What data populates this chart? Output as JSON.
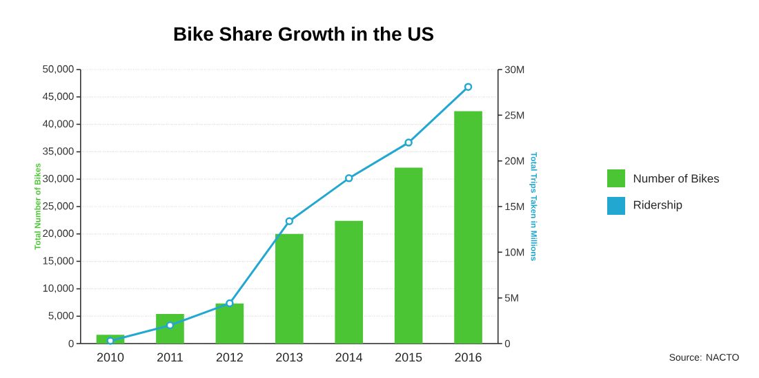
{
  "chart_data": {
    "type": "bar",
    "title": "Bike Share Growth in the US",
    "ylabel": "Total Number of Bikes",
    "y2label": "Total Trips Taken in Millions",
    "categories": [
      "2010",
      "2011",
      "2012",
      "2013",
      "2014",
      "2015",
      "2016"
    ],
    "series": [
      {
        "name": "Number of Bikes",
        "color": "#4cc534",
        "values": [
          1600,
          5400,
          7300,
          20000,
          22400,
          32100,
          42400
        ]
      },
      {
        "name": "Ridership",
        "type": "line",
        "axis": "y2",
        "marker": "circle",
        "color": "#22a7d0",
        "values": [
          0.3,
          2.0,
          4.4,
          13.4,
          18.1,
          22.0,
          28.1
        ]
      }
    ],
    "ylim": [
      0,
      50000
    ],
    "yticks": [
      0,
      {
        "value": 5000,
        "label": "5,000"
      },
      {
        "value": 10000,
        "label": "10,000"
      },
      {
        "value": 15000,
        "label": "15,000"
      },
      {
        "value": 20000,
        "label": "20,000"
      },
      {
        "value": 25000,
        "label": "25,000"
      },
      {
        "value": 30000,
        "label": "30,000"
      },
      {
        "value": 35000,
        "label": "35,000"
      },
      {
        "value": 40000,
        "label": "40,000"
      },
      {
        "value": 45000,
        "label": "45,000"
      },
      {
        "value": 50000,
        "label": "50,000"
      }
    ],
    "y2lim": [
      0,
      30
    ],
    "y2ticks": [
      0,
      {
        "value": 5,
        "label": "5M"
      },
      {
        "value": 10,
        "label": "10M"
      },
      {
        "value": 15,
        "label": "15M"
      },
      {
        "value": 20,
        "label": "20M"
      },
      {
        "value": 25,
        "label": "25M"
      },
      {
        "value": 30,
        "label": "30M"
      }
    ],
    "grid": "y",
    "legend": "right",
    "annotations": [
      "Source: NACTO"
    ]
  }
}
